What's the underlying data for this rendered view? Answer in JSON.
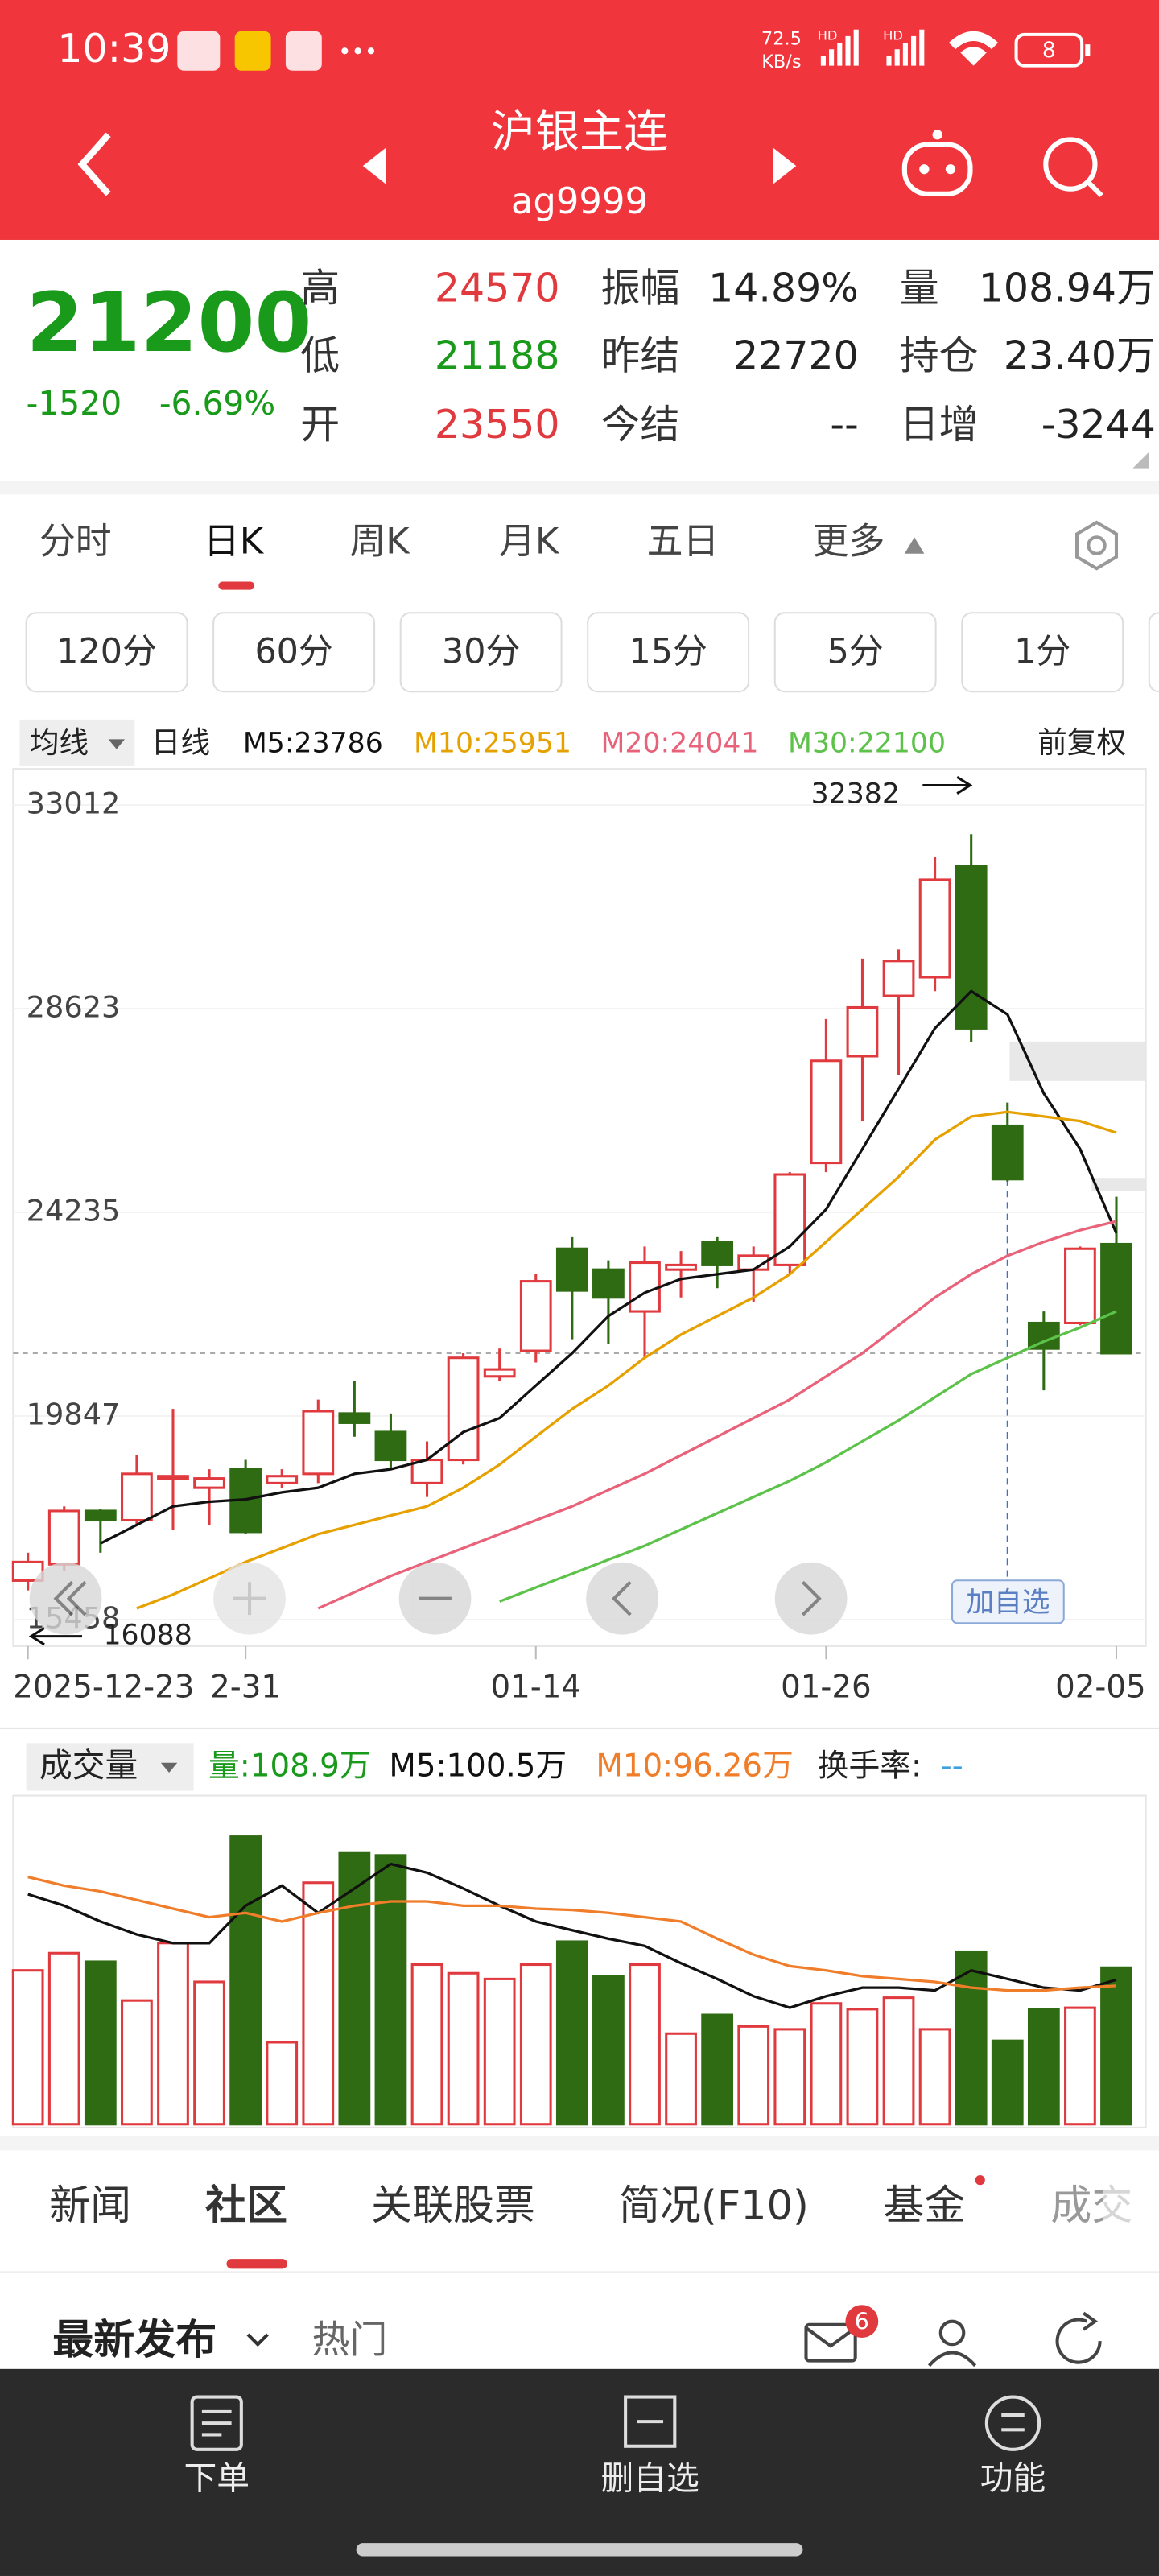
{
  "status_bar": {
    "time": "10:39",
    "speed": "72.5",
    "speed_unit": "KB/s",
    "network": [
      "HD",
      "HD"
    ],
    "battery": "8"
  },
  "header": {
    "title": "沪银主连",
    "code": "ag9999"
  },
  "quote": {
    "price": "21200",
    "change": "-1520",
    "change_pct": "-6.69%",
    "stats": [
      {
        "label": "高",
        "value": "24570",
        "tone": "up"
      },
      {
        "label": "振幅",
        "value": "14.89%",
        "tone": "flat"
      },
      {
        "label": "量",
        "value": "108.94万",
        "tone": "flat"
      },
      {
        "label": "低",
        "value": "21188",
        "tone": "down"
      },
      {
        "label": "昨结",
        "value": "22720",
        "tone": "flat"
      },
      {
        "label": "持仓",
        "value": "23.40万",
        "tone": "flat"
      },
      {
        "label": "开",
        "value": "23550",
        "tone": "up"
      },
      {
        "label": "今结",
        "value": "--",
        "tone": "flat"
      },
      {
        "label": "日增",
        "value": "-3244",
        "tone": "flat"
      }
    ]
  },
  "tabs": {
    "items": [
      "分时",
      "日K",
      "周K",
      "月K",
      "五日",
      "更多"
    ],
    "active": 1
  },
  "periods": [
    "120分",
    "60分",
    "30分",
    "15分",
    "5分",
    "1分"
  ],
  "ma_bar": {
    "selector": "均线",
    "period": "日线",
    "adjust": "前复权"
  },
  "kline": {
    "type": "candlestick",
    "categories": [
      "2025-12-23",
      null,
      null,
      null,
      null,
      null,
      "2-31",
      null,
      null,
      null,
      null,
      null,
      null,
      null,
      "01-14",
      null,
      null,
      null,
      null,
      null,
      null,
      null,
      "01-26",
      null,
      null,
      null,
      null,
      null,
      null,
      null,
      "02-05"
    ],
    "ylim": [
      14958,
      33543
    ],
    "yticks": [
      33012,
      28623,
      24235,
      19847,
      15458
    ],
    "up_color": "#e0393e",
    "down_color": "#2e6b12",
    "candles": [
      {
        "open": 16300,
        "high": 16900,
        "low": 16088,
        "close": 16700
      },
      {
        "open": 16650,
        "high": 17900,
        "low": 16500,
        "close": 17800
      },
      {
        "open": 17800,
        "high": 17850,
        "low": 16900,
        "close": 17600
      },
      {
        "open": 17600,
        "high": 19000,
        "low": 17500,
        "close": 18600
      },
      {
        "open": 18500,
        "high": 20000,
        "low": 17400,
        "close": 18550
      },
      {
        "open": 18300,
        "high": 18700,
        "low": 17500,
        "close": 18500
      },
      {
        "open": 18700,
        "high": 18900,
        "low": 17300,
        "close": 17350
      },
      {
        "open": 18400,
        "high": 18700,
        "low": 18300,
        "close": 18550
      },
      {
        "open": 18600,
        "high": 20200,
        "low": 18400,
        "close": 19950
      },
      {
        "open": 19900,
        "high": 20600,
        "low": 19400,
        "close": 19700
      },
      {
        "open": 19500,
        "high": 19900,
        "low": 18700,
        "close": 18900
      },
      {
        "open": 18400,
        "high": 19300,
        "low": 18100,
        "close": 18900
      },
      {
        "open": 18900,
        "high": 21200,
        "low": 18800,
        "close": 21100
      },
      {
        "open": 20700,
        "high": 21300,
        "low": 20600,
        "close": 20850
      },
      {
        "open": 21250,
        "high": 22900,
        "low": 21000,
        "close": 22750
      },
      {
        "open": 23450,
        "high": 23700,
        "low": 21500,
        "close": 22550
      },
      {
        "open": 23000,
        "high": 23200,
        "low": 21400,
        "close": 22400
      },
      {
        "open": 22100,
        "high": 23500,
        "low": 21100,
        "close": 23150
      },
      {
        "open": 23000,
        "high": 23400,
        "low": 22400,
        "close": 23100
      },
      {
        "open": 23600,
        "high": 23700,
        "low": 22600,
        "close": 23100
      },
      {
        "open": 23000,
        "high": 23500,
        "low": 22300,
        "close": 23300
      },
      {
        "open": 23100,
        "high": 25100,
        "low": 22900,
        "close": 25050
      },
      {
        "open": 25300,
        "high": 28400,
        "low": 25100,
        "close": 27500
      },
      {
        "open": 27600,
        "high": 29700,
        "low": 26200,
        "close": 28650
      },
      {
        "open": 28900,
        "high": 29900,
        "low": 27200,
        "close": 29650
      },
      {
        "open": 29300,
        "high": 31900,
        "low": 29000,
        "close": 31400
      },
      {
        "open": 31700,
        "high": 32382,
        "low": 27900,
        "close": 28200
      },
      {
        "open": 26100,
        "high": 26600,
        "low": 24900,
        "close": 24950
      },
      {
        "open": 21850,
        "high": 22100,
        "low": 20400,
        "close": 21300
      },
      {
        "open": 21850,
        "high": 23500,
        "low": 21800,
        "close": 23450
      },
      {
        "open": 23550,
        "high": 24570,
        "low": 21188,
        "close": 21200
      }
    ],
    "ma": [
      {
        "label": "M5:23786",
        "color": "#111111",
        "values": [
          null,
          null,
          17100,
          17500,
          17900,
          18000,
          18050,
          18200,
          18300,
          18600,
          18700,
          18900,
          19500,
          19800,
          20500,
          21200,
          22000,
          22500,
          22800,
          22900,
          23000,
          23500,
          24300,
          25600,
          26900,
          28200,
          29000,
          28500,
          26800,
          25600,
          23786
        ]
      },
      {
        "label": "M10:25951",
        "color": "#e6a100",
        "values": [
          null,
          null,
          null,
          15700,
          16000,
          16350,
          16700,
          17000,
          17300,
          17500,
          17700,
          17900,
          18300,
          18800,
          19400,
          20000,
          20500,
          21100,
          21600,
          22000,
          22400,
          22900,
          23600,
          24300,
          25000,
          25800,
          26300,
          26400,
          26300,
          26200,
          25951
        ]
      },
      {
        "label": "M20:24041",
        "color": "#e8627a",
        "values": [
          null,
          null,
          null,
          null,
          null,
          null,
          null,
          null,
          15700,
          16050,
          16400,
          16700,
          17000,
          17300,
          17600,
          17900,
          18250,
          18600,
          19000,
          19400,
          19800,
          20200,
          20700,
          21200,
          21800,
          22400,
          22900,
          23300,
          23600,
          23850,
          24041
        ]
      },
      {
        "label": "M30:22100",
        "color": "#5cc24a",
        "values": [
          null,
          null,
          null,
          null,
          null,
          null,
          null,
          null,
          null,
          null,
          null,
          null,
          null,
          15850,
          16150,
          16450,
          16750,
          17050,
          17400,
          17750,
          18100,
          18450,
          18850,
          19300,
          19750,
          20250,
          20750,
          21100,
          21450,
          21750,
          22100
        ]
      }
    ],
    "annotations": {
      "high": "32382",
      "low": "16088"
    },
    "add_watch": "加自选"
  },
  "volume": {
    "title": "成交量",
    "current": "量:108.9万",
    "turnover": "换手率:",
    "turnover_value": "--",
    "ylim": [
      0,
      232
    ],
    "values": [
      107,
      119,
      113,
      86,
      126,
      99,
      200,
      57,
      168,
      189,
      187,
      111,
      105,
      101,
      111,
      127,
      103,
      111,
      63,
      76,
      68,
      66,
      84,
      80,
      88,
      66,
      120,
      58,
      80,
      81,
      108.9
    ],
    "ma": [
      {
        "label": "M5:100.5万",
        "color": "#111111",
        "values": [
          160,
          152,
          141,
          132,
          126,
          126,
          152,
          166,
          147,
          164,
          181,
          175,
          164,
          152,
          141,
          135,
          129,
          124,
          112,
          101,
          89,
          81,
          89,
          95,
          95,
          93,
          107,
          101,
          95,
          93,
          100.5
        ]
      },
      {
        "label": "M10:96.26万",
        "color": "#f07d2a",
        "values": [
          172,
          166,
          162,
          156,
          150,
          144,
          147,
          141,
          147,
          152,
          155,
          155,
          152,
          152,
          150,
          149,
          147,
          144,
          141,
          129,
          118,
          110,
          107,
          103,
          101,
          99,
          95,
          93,
          93,
          95,
          96.26
        ]
      }
    ]
  },
  "news_tabs": {
    "items": [
      "新闻",
      "社区",
      "关联股票",
      "简况(F10)",
      "基金",
      "成交"
    ],
    "active": 1
  },
  "feed": {
    "latest": "最新发布",
    "hot": "热门",
    "badge": "6"
  },
  "bottom_nav": [
    "下单",
    "删自选",
    "功能"
  ]
}
